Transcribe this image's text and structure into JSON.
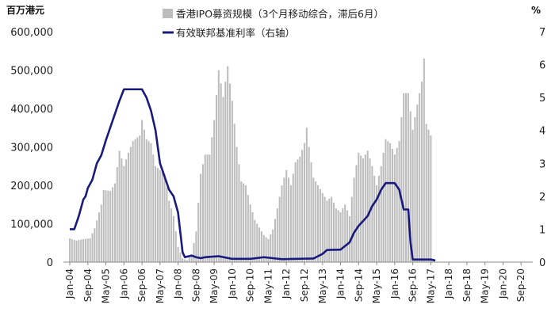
{
  "chart_data": {
    "type": "bar+line",
    "left_unit": "百万港元",
    "right_unit": "%",
    "left_ylim": [
      0,
      600000
    ],
    "left_ticks": [
      "0",
      "100,000",
      "200,000",
      "300,000",
      "400,000",
      "500,000",
      "600,000"
    ],
    "right_ylim": [
      0,
      7
    ],
    "right_ticks": [
      "0",
      "1",
      "2",
      "3",
      "4",
      "5",
      "6",
      "7"
    ],
    "x_tick_labels": [
      "Jan-04",
      "Sep-04",
      "May-05",
      "Jan-06",
      "Sep-06",
      "May-07",
      "Jan-08",
      "Sep-08",
      "May-09",
      "Jan-10",
      "Sep-10",
      "May-11",
      "Jan-12",
      "Sep-12",
      "May-13",
      "Jan-14",
      "Sep-14",
      "May-15",
      "Jan-16",
      "Sep-16",
      "May-17",
      "Jan-18",
      "Sep-18",
      "May-19",
      "Jan-20",
      "Sep-20"
    ],
    "legend_placement": "top",
    "grid": false,
    "series": [
      {
        "name": "香港IPO募资规模（3个月移动综合，滞后6月）",
        "kind": "bar",
        "axis": "left",
        "color": "#bdbdbd",
        "anchors": [
          [
            0,
            62000
          ],
          [
            3,
            56000
          ],
          [
            6,
            60000
          ],
          [
            9,
            62000
          ],
          [
            11,
            88000
          ],
          [
            14,
            150000
          ],
          [
            15,
            188000
          ],
          [
            18,
            185000
          ],
          [
            20,
            205000
          ],
          [
            22,
            290000
          ],
          [
            24,
            250000
          ],
          [
            26,
            285000
          ],
          [
            28,
            315000
          ],
          [
            31,
            330000
          ],
          [
            32,
            370000
          ],
          [
            34,
            320000
          ],
          [
            36,
            310000
          ],
          [
            38,
            250000
          ],
          [
            40,
            240000
          ],
          [
            42,
            230000
          ],
          [
            44,
            160000
          ],
          [
            46,
            120000
          ],
          [
            48,
            40000
          ],
          [
            50,
            10000
          ],
          [
            52,
            5000
          ],
          [
            54,
            20000
          ],
          [
            56,
            80000
          ],
          [
            58,
            230000
          ],
          [
            60,
            280000
          ],
          [
            62,
            280000
          ],
          [
            64,
            370000
          ],
          [
            66,
            500000
          ],
          [
            68,
            430000
          ],
          [
            70,
            510000
          ],
          [
            72,
            420000
          ],
          [
            74,
            300000
          ],
          [
            76,
            210000
          ],
          [
            78,
            200000
          ],
          [
            80,
            150000
          ],
          [
            82,
            110000
          ],
          [
            84,
            90000
          ],
          [
            86,
            70000
          ],
          [
            88,
            60000
          ],
          [
            90,
            85000
          ],
          [
            92,
            140000
          ],
          [
            94,
            200000
          ],
          [
            96,
            240000
          ],
          [
            98,
            200000
          ],
          [
            100,
            260000
          ],
          [
            102,
            275000
          ],
          [
            104,
            310000
          ],
          [
            105,
            350000
          ],
          [
            106,
            300000
          ],
          [
            108,
            220000
          ],
          [
            110,
            200000
          ],
          [
            112,
            180000
          ],
          [
            114,
            160000
          ],
          [
            116,
            170000
          ],
          [
            118,
            140000
          ],
          [
            120,
            130000
          ],
          [
            122,
            150000
          ],
          [
            124,
            120000
          ],
          [
            126,
            220000
          ],
          [
            128,
            285000
          ],
          [
            130,
            270000
          ],
          [
            132,
            290000
          ],
          [
            134,
            250000
          ],
          [
            136,
            200000
          ],
          [
            138,
            250000
          ],
          [
            140,
            320000
          ],
          [
            142,
            310000
          ],
          [
            144,
            280000
          ],
          [
            146,
            315000
          ],
          [
            148,
            440000
          ],
          [
            150,
            440000
          ],
          [
            152,
            345000
          ],
          [
            154,
            410000
          ],
          [
            156,
            470000
          ],
          [
            157,
            530000
          ],
          [
            158,
            360000
          ],
          [
            160,
            330000
          ]
        ]
      },
      {
        "name": "有效联邦基准利率（右轴）",
        "kind": "line",
        "axis": "right",
        "color": "#1a1a7e",
        "anchors": [
          [
            0,
            1.0
          ],
          [
            2,
            1.0
          ],
          [
            4,
            1.4
          ],
          [
            6,
            1.9
          ],
          [
            7,
            2.0
          ],
          [
            8,
            2.25
          ],
          [
            10,
            2.5
          ],
          [
            12,
            3.0
          ],
          [
            14,
            3.25
          ],
          [
            16,
            3.7
          ],
          [
            18,
            4.1
          ],
          [
            20,
            4.5
          ],
          [
            22,
            4.9
          ],
          [
            24,
            5.25
          ],
          [
            26,
            5.25
          ],
          [
            28,
            5.25
          ],
          [
            30,
            5.25
          ],
          [
            32,
            5.25
          ],
          [
            34,
            5.0
          ],
          [
            36,
            4.6
          ],
          [
            38,
            4.0
          ],
          [
            40,
            3.0
          ],
          [
            42,
            2.6
          ],
          [
            44,
            2.2
          ],
          [
            46,
            2.0
          ],
          [
            48,
            1.5
          ],
          [
            49,
            0.9
          ],
          [
            50,
            0.3
          ],
          [
            51,
            0.15
          ],
          [
            54,
            0.2
          ],
          [
            56,
            0.15
          ],
          [
            58,
            0.12
          ],
          [
            60,
            0.15
          ],
          [
            66,
            0.18
          ],
          [
            72,
            0.1
          ],
          [
            80,
            0.1
          ],
          [
            86,
            0.15
          ],
          [
            94,
            0.09
          ],
          [
            100,
            0.1
          ],
          [
            108,
            0.11
          ],
          [
            112,
            0.25
          ],
          [
            114,
            0.37
          ],
          [
            120,
            0.38
          ],
          [
            124,
            0.6
          ],
          [
            126,
            0.9
          ],
          [
            128,
            1.1
          ],
          [
            132,
            1.4
          ],
          [
            134,
            1.7
          ],
          [
            136,
            1.9
          ],
          [
            138,
            2.2
          ],
          [
            140,
            2.4
          ],
          [
            142,
            2.4
          ],
          [
            144,
            2.4
          ],
          [
            146,
            2.2
          ],
          [
            148,
            1.6
          ],
          [
            150,
            1.6
          ],
          [
            151,
            0.6
          ],
          [
            152,
            0.08
          ],
          [
            160,
            0.08
          ],
          [
            162,
            0.05
          ]
        ]
      }
    ]
  }
}
